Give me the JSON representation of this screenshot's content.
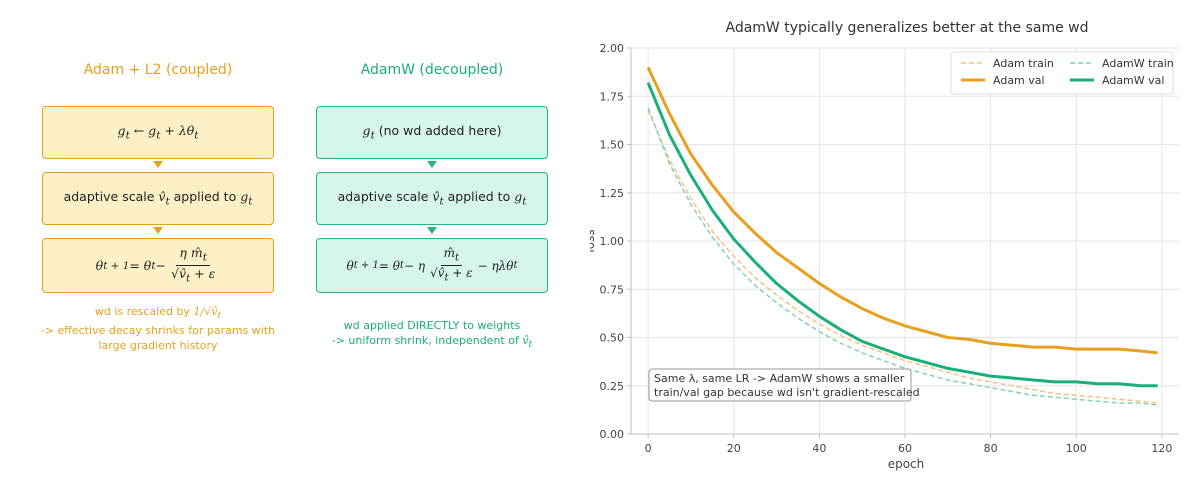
{
  "diagram": {
    "left": {
      "title": "Adam + L2  (coupled)",
      "step1": "g_t ← g_t + λθ_t",
      "step1_a": "g",
      "step1_b": "t",
      "step1_c": " ← g",
      "step1_d": "t",
      "step1_e": " + λθ",
      "step1_f": "t",
      "step2_prefix": "adaptive scale  ",
      "step2_sym": "v̂",
      "step2_sub": "t",
      "step2_mid": "  applied to ",
      "step2_g": "g",
      "step2_gsub": "t",
      "step3_lhs": "θ",
      "step3_lhs_sub": "t + 1",
      "step3_eq": " = θ",
      "step3_eq_sub": "t",
      "step3_minus": " − ",
      "step3_num": "η m̂",
      "step3_num_sub": "t",
      "step3_den": "√v̂",
      "step3_den_sub": "t",
      "step3_den_tail": " + ε",
      "note_line1_a": "wd is rescaled by  ",
      "note_line1_b": "1/√v̂",
      "note_line1_sub": "t",
      "note_line2": "->  effective decay shrinks for params with",
      "note_line3": "large gradient history"
    },
    "right": {
      "title": "AdamW  (decoupled)",
      "step1_g": "g",
      "step1_sub": "t",
      "step1_tail": "  (no wd added here)",
      "step2_prefix": "adaptive scale  ",
      "step2_sym": "v̂",
      "step2_sub": "t",
      "step2_mid": "  applied to ",
      "step2_g": "g",
      "step2_gsub": "t",
      "step3_lhs": "θ",
      "step3_lhs_sub": "t + 1",
      "step3_eq": " = θ",
      "step3_eq_sub": "t",
      "step3_minus": " − η",
      "step3_num": "m̂",
      "step3_num_sub": "t",
      "step3_den": "√v̂",
      "step3_den_sub": "t",
      "step3_den_tail": " + ε",
      "step3_tail": " − ηλθ",
      "step3_tail_sub": "t",
      "note_line1": "wd applied DIRECTLY to weights",
      "note_line2_a": "->  uniform shrink, independent of ",
      "note_line2_sym": "v̂",
      "note_line2_sub": "t"
    }
  },
  "colors": {
    "adam": "#e8a01e",
    "adamw": "#1aaf78",
    "adam_light": "#f1c27f",
    "adamw_light": "#84d2b3",
    "grid": "#e6e6e6",
    "axis": "#bfbfbf"
  },
  "chart_data": {
    "type": "line",
    "title": "AdamW typically generalizes better at the same wd",
    "xlabel": "epoch",
    "ylabel": "loss",
    "xlim": [
      -4,
      124
    ],
    "ylim": [
      0,
      2.0
    ],
    "xticks": [
      0,
      20,
      40,
      60,
      80,
      100,
      120
    ],
    "yticks": [
      0.0,
      0.25,
      0.5,
      0.75,
      1.0,
      1.25,
      1.5,
      1.75,
      2.0
    ],
    "ytick_labels": [
      "0.00",
      "0.25",
      "0.50",
      "0.75",
      "1.00",
      "1.25",
      "1.50",
      "1.75",
      "2.00"
    ],
    "grid": true,
    "legend": "top-right",
    "annotation": "Same λ, same LR -> AdamW shows a smaller train/val gap because wd isn't gradient-rescaled",
    "annotation_line1": "Same λ, same LR -> AdamW shows a smaller",
    "annotation_line2": "train/val gap because wd isn't gradient-rescaled",
    "x": [
      0,
      5,
      10,
      15,
      20,
      25,
      30,
      35,
      40,
      45,
      50,
      55,
      60,
      65,
      70,
      75,
      80,
      85,
      90,
      95,
      100,
      105,
      110,
      115,
      119
    ],
    "series": [
      {
        "name": "Adam train",
        "style": "dashed",
        "color": "#f1c27f",
        "values": [
          1.68,
          1.42,
          1.22,
          1.05,
          0.92,
          0.81,
          0.72,
          0.64,
          0.57,
          0.51,
          0.46,
          0.42,
          0.38,
          0.35,
          0.32,
          0.29,
          0.27,
          0.25,
          0.23,
          0.21,
          0.2,
          0.19,
          0.18,
          0.17,
          0.16
        ]
      },
      {
        "name": "Adam val",
        "style": "solid",
        "color": "#e8a01e",
        "values": [
          1.9,
          1.66,
          1.45,
          1.29,
          1.15,
          1.04,
          0.94,
          0.86,
          0.78,
          0.71,
          0.65,
          0.6,
          0.56,
          0.53,
          0.5,
          0.49,
          0.47,
          0.46,
          0.45,
          0.45,
          0.44,
          0.44,
          0.44,
          0.43,
          0.42
        ]
      },
      {
        "name": "AdamW train",
        "style": "dashed",
        "color": "#84d2b3",
        "values": [
          1.69,
          1.4,
          1.19,
          1.02,
          0.88,
          0.77,
          0.68,
          0.6,
          0.53,
          0.47,
          0.42,
          0.38,
          0.34,
          0.31,
          0.28,
          0.26,
          0.24,
          0.22,
          0.2,
          0.19,
          0.18,
          0.17,
          0.16,
          0.16,
          0.15
        ]
      },
      {
        "name": "AdamW val",
        "style": "solid",
        "color": "#1aaf78",
        "values": [
          1.82,
          1.55,
          1.34,
          1.16,
          1.01,
          0.89,
          0.78,
          0.69,
          0.61,
          0.54,
          0.48,
          0.44,
          0.4,
          0.37,
          0.34,
          0.32,
          0.3,
          0.29,
          0.28,
          0.27,
          0.27,
          0.26,
          0.26,
          0.25,
          0.25
        ]
      }
    ]
  }
}
